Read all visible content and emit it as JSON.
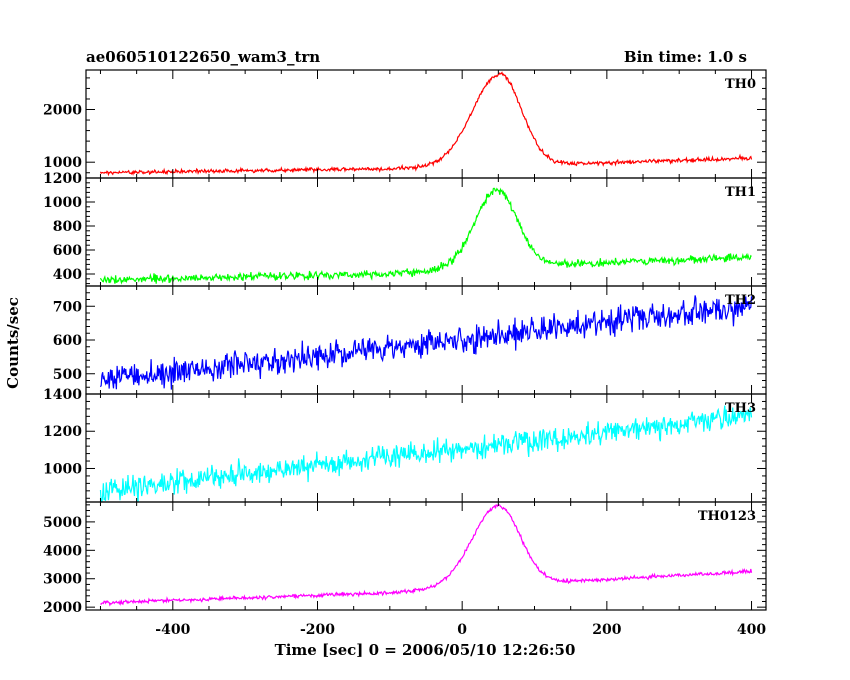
{
  "chart_data": {
    "type": "line",
    "title_left": "ae060510122650_wam3_trn",
    "title_right": "Bin time: 1.0 s",
    "xlabel": "Time [sec] 0 = 2006/05/10 12:26:50",
    "ylabel": "Counts/sec",
    "xlim": [
      -520,
      420
    ],
    "x_ticks": [
      -400,
      -200,
      0,
      200,
      400
    ],
    "x_range": [
      -500,
      400
    ],
    "x_step": 1,
    "panels": [
      {
        "name": "TH0",
        "color": "#ff0000",
        "ylim": [
          700,
          2750
        ],
        "y_ticks": [
          1000,
          2000
        ],
        "shape": {
          "type": "burst",
          "base_points": [
            [
              -500,
              800
            ],
            [
              0,
              900
            ],
            [
              400,
              1080
            ]
          ],
          "peak_time": 52,
          "peak_height": 1750,
          "rise_sigma": 38,
          "decay_sigma": 30,
          "noise": 25
        }
      },
      {
        "name": "TH1",
        "color": "#00ff00",
        "ylim": [
          300,
          1200
        ],
        "y_ticks": [
          400,
          600,
          800,
          1000,
          1200
        ],
        "shape": {
          "type": "burst",
          "base_points": [
            [
              -500,
              350
            ],
            [
              -100,
              400
            ],
            [
              0,
              450
            ],
            [
              400,
              540
            ]
          ],
          "peak_time": 48,
          "peak_height": 640,
          "rise_sigma": 30,
          "decay_sigma": 28,
          "noise": 22
        }
      },
      {
        "name": "TH2",
        "color": "#0000ff",
        "ylim": [
          440,
          760
        ],
        "y_ticks": [
          500,
          600,
          700
        ],
        "shape": {
          "type": "trend",
          "base_points": [
            [
              -500,
              480
            ],
            [
              400,
              700
            ]
          ],
          "noise": 28
        }
      },
      {
        "name": "TH3",
        "color": "#00ffff",
        "ylim": [
          820,
          1400
        ],
        "y_ticks": [
          1000,
          1200,
          1400
        ],
        "shape": {
          "type": "trend",
          "base_points": [
            [
              -500,
              880
            ],
            [
              400,
              1290
            ]
          ],
          "noise": 45
        }
      },
      {
        "name": "TH0123",
        "color": "#ff00ff",
        "ylim": [
          1900,
          5700
        ],
        "y_ticks": [
          2000,
          3000,
          4000,
          5000
        ],
        "shape": {
          "type": "burst",
          "base_points": [
            [
              -500,
              2150
            ],
            [
              -100,
              2500
            ],
            [
              0,
              2700
            ],
            [
              400,
              3250
            ]
          ],
          "peak_time": 50,
          "peak_height": 2800,
          "rise_sigma": 36,
          "decay_sigma": 30,
          "noise": 45
        }
      }
    ]
  }
}
